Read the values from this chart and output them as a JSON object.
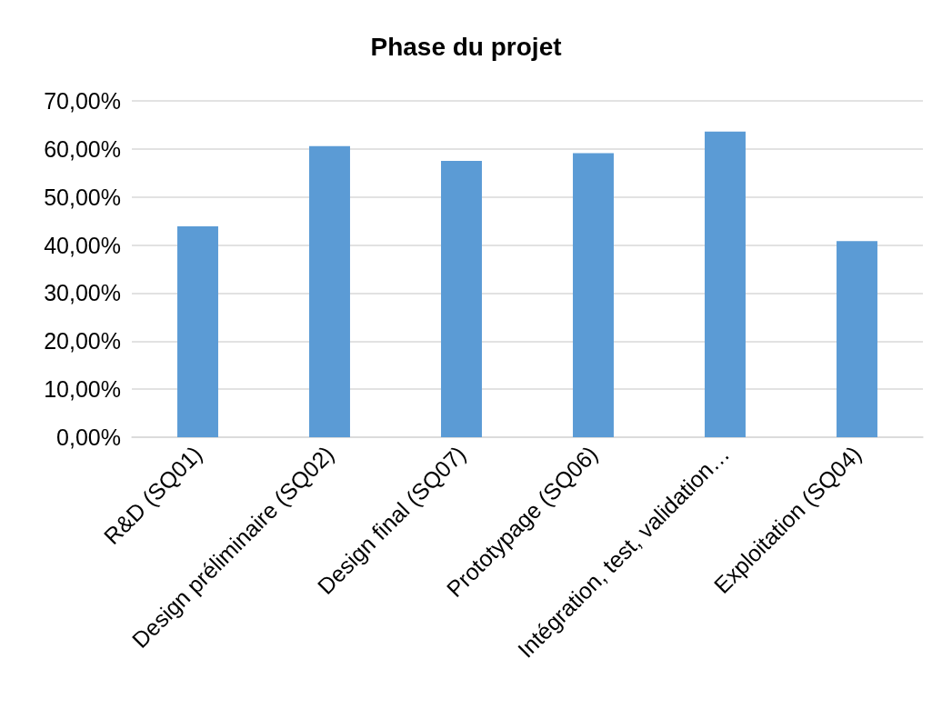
{
  "chart_data": {
    "type": "bar",
    "title": "Phase du projet",
    "categories": [
      "R&D (SQ01)",
      "Design préliminaire (SQ02)",
      "Design final (SQ07)",
      "Prototypage (SQ06)",
      "Intégration, test, validation…",
      "Exploitation (SQ04)"
    ],
    "values": [
      43.9,
      60.6,
      57.5,
      59.1,
      63.6,
      40.8
    ],
    "color": "#5b9bd5",
    "ylim": [
      0,
      70
    ],
    "yticks": [
      {
        "value": 0,
        "label": "0,00%"
      },
      {
        "value": 10,
        "label": "10,00%"
      },
      {
        "value": 20,
        "label": "20,00%"
      },
      {
        "value": 30,
        "label": "30,00%"
      },
      {
        "value": 40,
        "label": "40,00%"
      },
      {
        "value": 50,
        "label": "50,00%"
      },
      {
        "value": 60,
        "label": "60,00%"
      },
      {
        "value": 70,
        "label": "70,00%"
      }
    ],
    "grid": "y"
  }
}
